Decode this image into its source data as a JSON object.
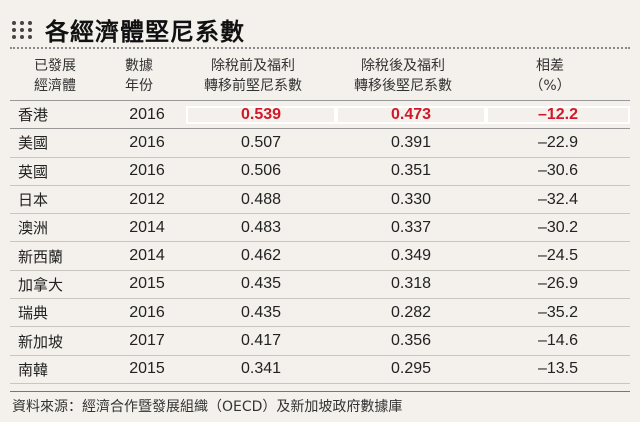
{
  "title": "各經濟體堅尼系數",
  "headers": [
    "已發展\n經濟體",
    "數據\n年份",
    "除稅前及福利\n轉移前堅尼系數",
    "除稅後及福利\n轉移後堅尼系數",
    "相差\n（%）"
  ],
  "rows": [
    {
      "economy": "香港",
      "year": "2016",
      "before": "0.539",
      "after": "0.473",
      "diff": "–12.2"
    },
    {
      "economy": "美國",
      "year": "2016",
      "before": "0.507",
      "after": "0.391",
      "diff": "–22.9"
    },
    {
      "economy": "英國",
      "year": "2016",
      "before": "0.506",
      "after": "0.351",
      "diff": "–30.6"
    },
    {
      "economy": "日本",
      "year": "2012",
      "before": "0.488",
      "after": "0.330",
      "diff": "–32.4"
    },
    {
      "economy": "澳洲",
      "year": "2014",
      "before": "0.483",
      "after": "0.337",
      "diff": "–30.2"
    },
    {
      "economy": "新西蘭",
      "year": "2014",
      "before": "0.462",
      "after": "0.349",
      "diff": "–24.5"
    },
    {
      "economy": "加拿大",
      "year": "2015",
      "before": "0.435",
      "after": "0.318",
      "diff": "–26.9"
    },
    {
      "economy": "瑞典",
      "year": "2016",
      "before": "0.435",
      "after": "0.282",
      "diff": "–35.2"
    },
    {
      "economy": "新加坡",
      "year": "2017",
      "before": "0.417",
      "after": "0.356",
      "diff": "–14.6"
    },
    {
      "economy": "南韓",
      "year": "2015",
      "before": "0.341",
      "after": "0.295",
      "diff": "–13.5"
    }
  ],
  "source": "資料來源：經濟合作暨發展組織（OECD）及新加坡政府數據庫",
  "colors": {
    "highlight": "#d0182a",
    "background": "#f4f1ec"
  }
}
